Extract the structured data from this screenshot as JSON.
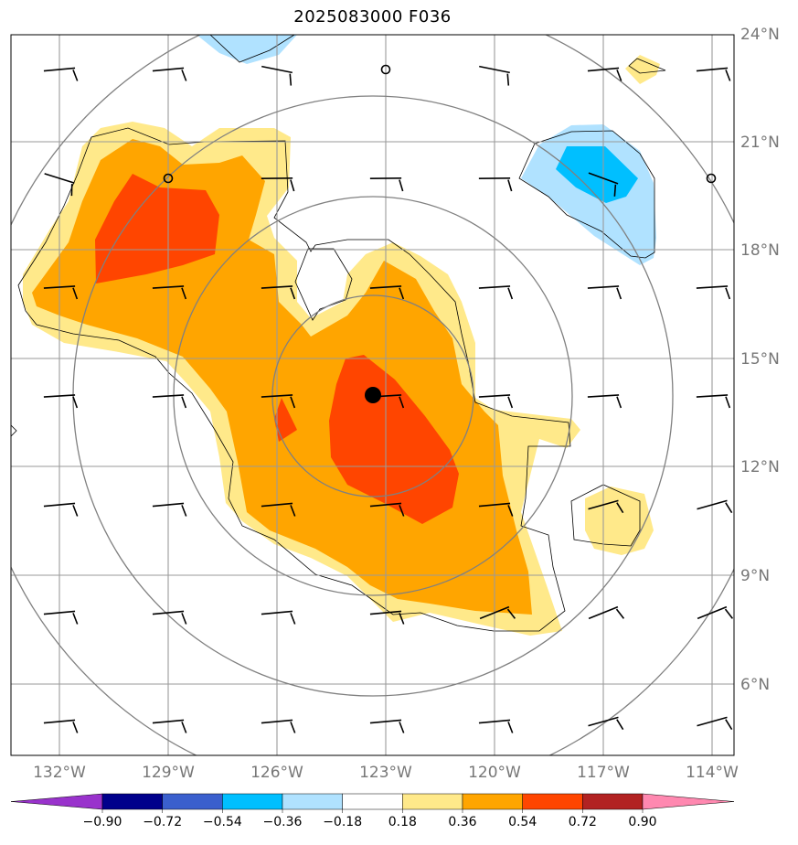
{
  "title": "2025083000 F036",
  "map": {
    "lon_range": [
      -133.0,
      -113.5
    ],
    "lat_range": [
      4.0,
      24.0
    ],
    "lon_ticks": [
      "132°W",
      "129°W",
      "126°W",
      "123°W",
      "120°W",
      "117°W",
      "114°W"
    ],
    "lat_ticks": [
      "6°N",
      "9°N",
      "12°N",
      "15°N",
      "18°N",
      "21°N",
      "24°N"
    ],
    "lon_tick_values": [
      -132,
      -129,
      -126,
      -123,
      -120,
      -117,
      -114
    ],
    "lat_tick_values": [
      6,
      9,
      12,
      15,
      18,
      21,
      24
    ],
    "gridlines": true,
    "storm_center": {
      "lon": -123.35,
      "lat": 14.0
    },
    "range_rings": "concentric circles around storm center",
    "field": "filled contours (positive near storm center)",
    "wind_barbs": "regular grid every 3 degrees"
  },
  "colorbar": {
    "extend": "both",
    "ticks": [
      "−0.90",
      "−0.72",
      "−0.54",
      "−0.36",
      "−0.18",
      "0.18",
      "0.36",
      "0.54",
      "0.72",
      "0.90"
    ],
    "colors": [
      "#9932CC",
      "#00008B",
      "#3A5FCD",
      "#00BFFF",
      "#B0E2FF",
      "#FFFFFF",
      "#FFE98A",
      "#FFA500",
      "#FF4500",
      "#B22222",
      "#FF88B0"
    ]
  }
}
